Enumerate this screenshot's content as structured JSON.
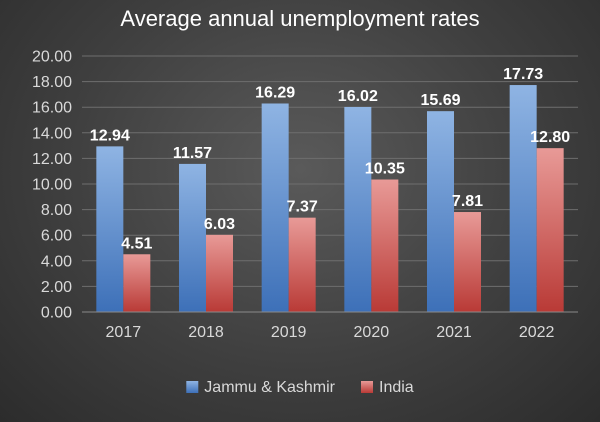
{
  "chart_data": {
    "type": "bar",
    "title": "Average annual unemployment rates",
    "categories": [
      "2017",
      "2018",
      "2019",
      "2020",
      "2021",
      "2022"
    ],
    "series": [
      {
        "name": "Jammu & Kashmir",
        "values": [
          12.94,
          11.57,
          16.29,
          16.02,
          15.69,
          17.73
        ],
        "labels": [
          "12.94",
          "11.57",
          "16.29",
          "16.02",
          "15.69",
          "17.73"
        ]
      },
      {
        "name": "India",
        "values": [
          4.51,
          6.03,
          7.37,
          10.35,
          7.81,
          12.8
        ],
        "labels": [
          "4.51",
          "6.03",
          "7.37",
          "10.35",
          "7.81",
          "12.80"
        ]
      }
    ],
    "yticks": [
      "0.00",
      "2.00",
      "4.00",
      "6.00",
      "8.00",
      "10.00",
      "12.00",
      "14.00",
      "16.00",
      "18.00",
      "20.00"
    ],
    "ylim": [
      0,
      20
    ],
    "xlabel": "",
    "ylabel": "",
    "grid": true,
    "legend_position": "bottom",
    "colors": {
      "Jammu & Kashmir": [
        "#8fb4e3",
        "#3d70b8"
      ],
      "India": [
        "#e89a97",
        "#b93a36"
      ]
    }
  }
}
